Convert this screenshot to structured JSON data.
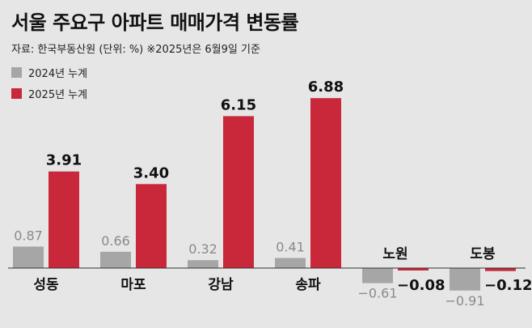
{
  "title": "서울 주요구 아파트 매매가격 변동률",
  "subtitle": "자료: 한국부동산원 (단위: %)  ※2025년은 6월9일 기준",
  "colors": {
    "background": "#e6e6e6",
    "series_2024": "#a6a6a6",
    "series_2025": "#c8283a"
  },
  "chart_data": {
    "type": "bar",
    "categories": [
      "성동",
      "마포",
      "강남",
      "송파",
      "노원",
      "도봉"
    ],
    "series": [
      {
        "name": "2024년 누계",
        "values": [
          0.87,
          0.66,
          0.32,
          0.41,
          -0.61,
          -0.91
        ],
        "labels": [
          "0.87",
          "0.66",
          "0.32",
          "0.41",
          "−0.61",
          "−0.91"
        ]
      },
      {
        "name": "2025년 누계",
        "values": [
          3.91,
          3.4,
          6.15,
          6.88,
          -0.08,
          -0.12
        ],
        "labels": [
          "3.91",
          "3.40",
          "6.15",
          "6.88",
          "−0.08",
          "−0.12"
        ]
      }
    ],
    "legend_position": "top-left",
    "grid": false
  }
}
